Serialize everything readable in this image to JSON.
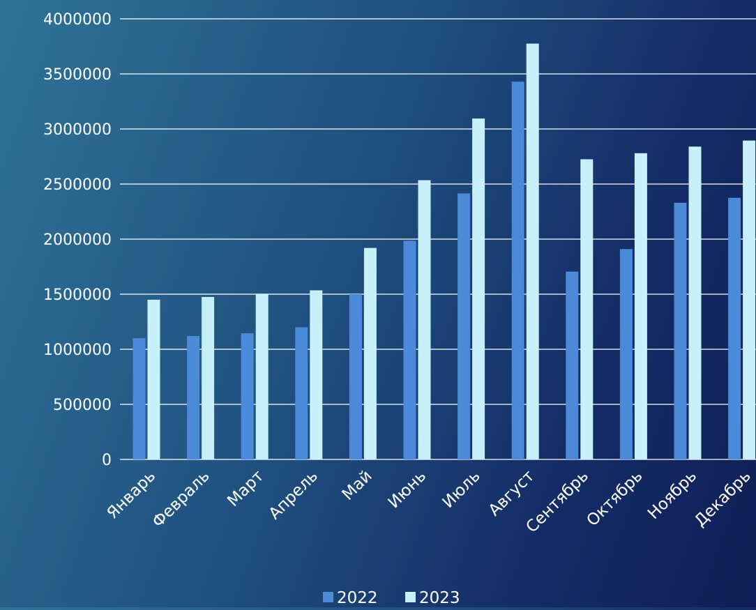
{
  "chart_data": {
    "type": "bar",
    "title": "",
    "xlabel": "",
    "ylabel": "",
    "ylim": [
      0,
      4000000
    ],
    "y_ticks": [
      "0",
      "500000",
      "1000000",
      "1500000",
      "2000000",
      "2500000",
      "3000000",
      "3500000",
      "4000000"
    ],
    "grid": true,
    "legend_position": "bottom",
    "categories": [
      "Январь",
      "Февраль",
      "Март",
      "Апрель",
      "Май",
      "Июнь",
      "Июль",
      "Август",
      "Сентябрь",
      "Октябрь",
      "Ноябрь",
      "Декабрь"
    ],
    "series": [
      {
        "name": "2022",
        "color": "#4a8ad8",
        "values": [
          1100000,
          1120000,
          1145000,
          1200000,
          1500000,
          1985000,
          2415000,
          3430000,
          1705000,
          1910000,
          2330000,
          2375000
        ]
      },
      {
        "name": "2023",
        "color": "#c8f0fb",
        "values": [
          1450000,
          1475000,
          1505000,
          1535000,
          1920000,
          2535000,
          3095000,
          3775000,
          2725000,
          2780000,
          2840000,
          2895000
        ]
      }
    ]
  }
}
